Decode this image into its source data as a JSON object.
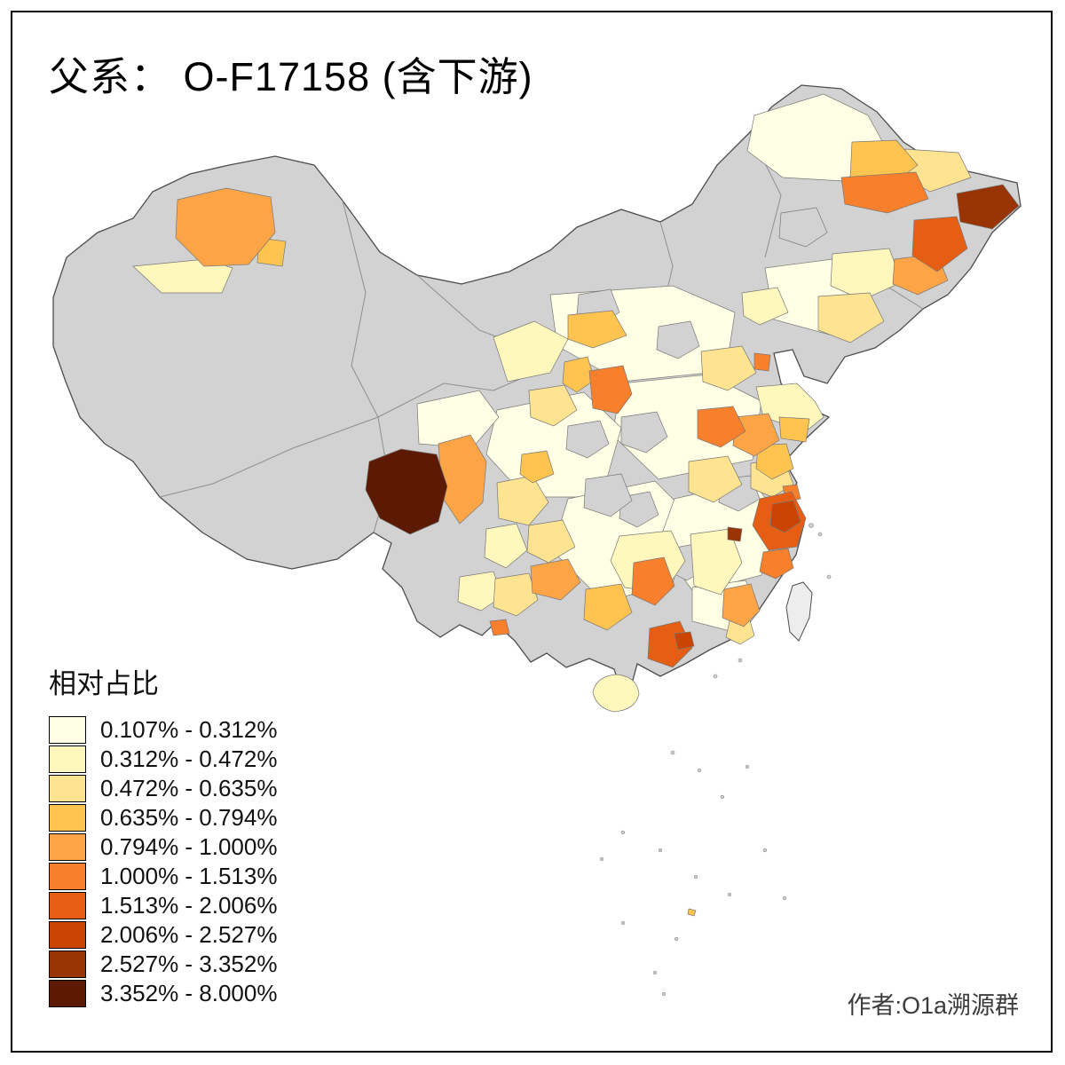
{
  "title": "父系： O-F17158 (含下游)",
  "legend": {
    "title": "相对占比",
    "items": [
      {
        "range": "0.107% - 0.312%",
        "color": "#FFFFE5"
      },
      {
        "range": "0.312% - 0.472%",
        "color": "#FFF7BC"
      },
      {
        "range": "0.472% - 0.635%",
        "color": "#FEE391"
      },
      {
        "range": "0.635% - 0.794%",
        "color": "#FEC44F"
      },
      {
        "range": "0.794% - 1.000%",
        "color": "#FDA546"
      },
      {
        "range": "1.000% - 1.513%",
        "color": "#F87F2C"
      },
      {
        "range": "1.513% - 2.006%",
        "color": "#E65E13"
      },
      {
        "range": "2.006% - 2.527%",
        "color": "#CC4402"
      },
      {
        "range": "2.527% - 3.352%",
        "color": "#993404"
      },
      {
        "range": "3.352% - 8.000%",
        "color": "#5C1A04"
      }
    ]
  },
  "credit": "作者:O1a溯源群",
  "map": {
    "no_data_color": "#D2D2D2",
    "outline_color": "#4D4D4D",
    "background": "#FFFFFF"
  }
}
